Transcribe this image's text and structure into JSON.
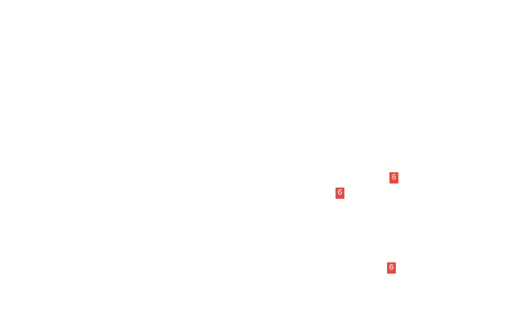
{
  "page": {
    "background_color": "#ffffff"
  },
  "badge_style": {
    "background_color": "#ea4b41",
    "text_color": "#ffffff"
  },
  "badges": [
    {
      "label": "6"
    },
    {
      "label": "6"
    },
    {
      "label": "6"
    }
  ]
}
